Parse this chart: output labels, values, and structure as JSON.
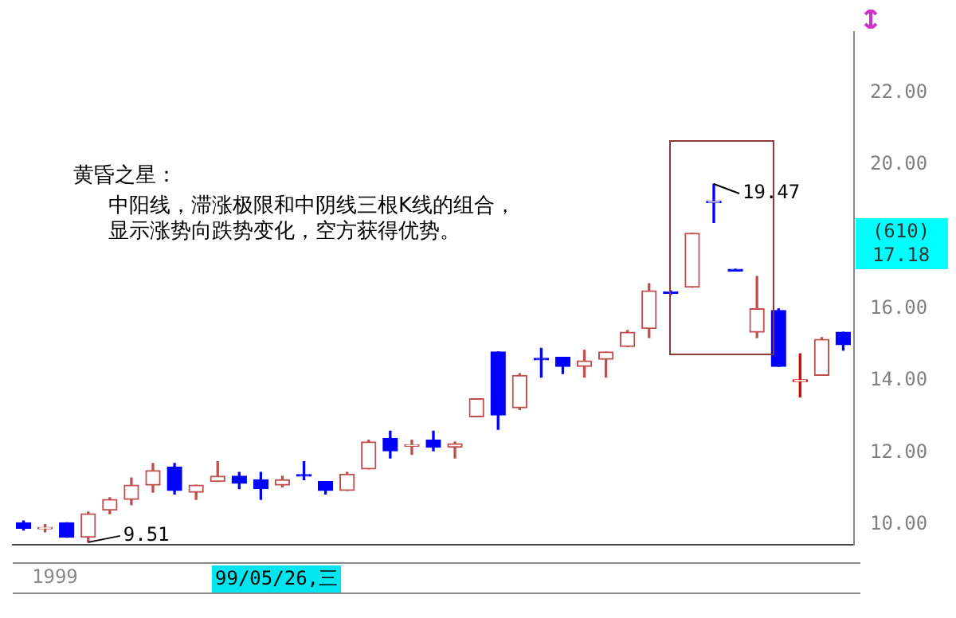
{
  "chart_data": {
    "type": "candlestick",
    "categories": [
      null,
      null,
      null,
      null,
      null,
      null,
      null,
      null,
      null,
      null,
      null,
      null,
      null,
      null,
      null,
      null,
      null,
      null,
      null,
      null,
      null,
      null,
      null,
      null,
      null,
      null,
      null,
      null,
      null,
      null,
      null,
      null,
      null,
      null,
      null,
      null,
      null,
      null,
      null
    ],
    "ohlc": [
      [
        10.05,
        10.1,
        9.85,
        9.9
      ],
      [
        9.88,
        10.0,
        9.8,
        9.9
      ],
      [
        10.05,
        10.05,
        9.65,
        9.65
      ],
      [
        9.65,
        10.35,
        9.51,
        10.3
      ],
      [
        10.4,
        10.75,
        10.3,
        10.7
      ],
      [
        10.7,
        11.3,
        10.55,
        11.1
      ],
      [
        11.1,
        11.7,
        10.9,
        11.5
      ],
      [
        11.6,
        11.7,
        10.85,
        10.95
      ],
      [
        10.9,
        11.1,
        10.7,
        11.1
      ],
      [
        11.2,
        11.75,
        11.2,
        11.35
      ],
      [
        11.35,
        11.45,
        11.0,
        11.15
      ],
      [
        11.25,
        11.45,
        10.7,
        11.0
      ],
      [
        11.1,
        11.35,
        11.05,
        11.25
      ],
      [
        11.39,
        11.75,
        11.25,
        11.35
      ],
      [
        11.2,
        11.2,
        10.85,
        10.95
      ],
      [
        10.95,
        11.45,
        10.95,
        11.4
      ],
      [
        11.55,
        12.35,
        11.55,
        12.3
      ],
      [
        12.4,
        12.6,
        11.85,
        12.05
      ],
      [
        12.18,
        12.35,
        11.95,
        12.22
      ],
      [
        12.35,
        12.6,
        12.05,
        12.15
      ],
      [
        12.15,
        12.3,
        11.85,
        12.25
      ],
      [
        13.0,
        13.5,
        13.0,
        13.5
      ],
      [
        14.8,
        14.8,
        12.65,
        13.05
      ],
      [
        13.25,
        14.2,
        13.2,
        14.15
      ],
      [
        14.62,
        14.9,
        14.1,
        14.58
      ],
      [
        14.65,
        14.65,
        14.2,
        14.4
      ],
      [
        14.4,
        14.85,
        14.1,
        14.55
      ],
      [
        14.6,
        14.8,
        14.1,
        14.8
      ],
      [
        14.95,
        15.4,
        14.95,
        15.35
      ],
      [
        15.45,
        16.7,
        15.2,
        16.5
      ],
      [
        16.47,
        16.5,
        16.4,
        16.43
      ],
      [
        16.6,
        18.1,
        16.6,
        18.1
      ],
      [
        18.95,
        19.47,
        18.4,
        18.95
      ],
      [
        17.1,
        17.1,
        17.05,
        17.05
      ],
      [
        15.35,
        16.9,
        15.2,
        16.0
      ],
      [
        15.95,
        16.0,
        14.4,
        14.4
      ],
      [
        13.98,
        14.75,
        13.55,
        14.02
      ],
      [
        14.15,
        15.2,
        14.15,
        15.15
      ],
      [
        15.35,
        15.35,
        14.85,
        15.0
      ]
    ],
    "colors": [
      "#0000ff",
      "#c0504d",
      "#0000ff",
      "#c0504d",
      "#c0504d",
      "#c0504d",
      "#c0504d",
      "#0000ff",
      "#c0504d",
      "#c0504d",
      "#0000ff",
      "#0000ff",
      "#c0504d",
      "#0000ff",
      "#0000ff",
      "#c0504d",
      "#c0504d",
      "#0000ff",
      "#c0504d",
      "#0000ff",
      "#c0504d",
      "#c0504d",
      "#0000ff",
      "#c0504d",
      "#0000ff",
      "#0000ff",
      "#c0504d",
      "#c0504d",
      "#c0504d",
      "#c0504d",
      "#0000ff",
      "#c0504d",
      "#0000ff",
      "#0000ff",
      "#c0504d",
      "#0000ff",
      "#e00000",
      "#c0504d",
      "#0000ff"
    ],
    "ylim": [
      9.45,
      23.7
    ],
    "yticks": [
      {
        "value": 10,
        "label": "10.00"
      },
      {
        "value": 12,
        "label": "12.00"
      },
      {
        "value": 14,
        "label": "14.00"
      },
      {
        "value": 16,
        "label": "16.00"
      },
      {
        "value": 20,
        "label": "20.00"
      },
      {
        "value": 22,
        "label": "22.00"
      }
    ],
    "annotations": [
      "黄昏之星：",
      "中阳线，滞涨极限和中阴线三根K线的组合，",
      "显示涨势向跌势变化，空方获得优势。",
      "1999",
      "99/05/26,三",
      "9.51",
      "19.47",
      "(610)",
      "17.18"
    ],
    "grid": false,
    "legend": false
  }
}
